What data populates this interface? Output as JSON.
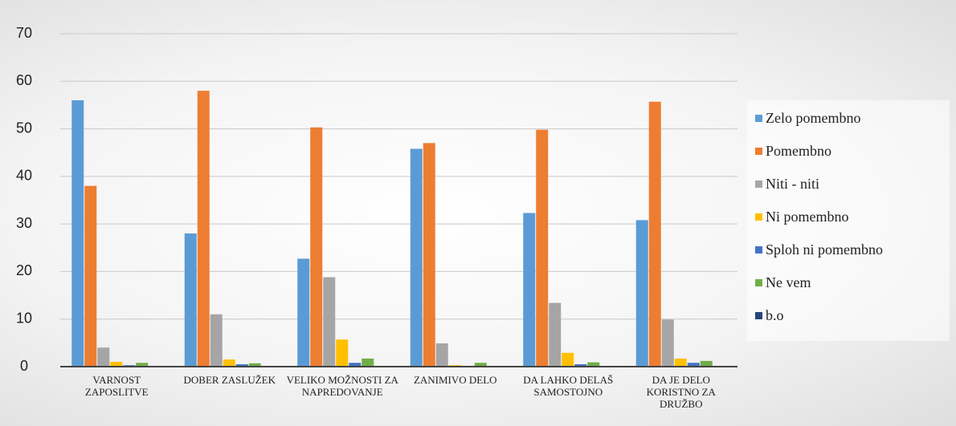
{
  "chart_data": {
    "type": "bar",
    "categories": [
      "VARNOST ZAPOSLITVE",
      "DOBER ZASLUŽEK",
      "VELIKO MOŽNOSTI ZA NAPREDOVANJE",
      "ZANIMIVO DELO",
      "DA LAHKO DELAŠ SAMOSTOJNO",
      "DA JE DELO KORISTNO ZA DRUŽBO"
    ],
    "series": [
      {
        "name": "Zelo pomembno",
        "color": "#5b9bd5",
        "values": [
          56,
          28,
          22.7,
          45.8,
          32.3,
          30.8
        ]
      },
      {
        "name": "Pomembno",
        "color": "#ed7d31",
        "values": [
          38,
          58,
          50.3,
          47,
          49.8,
          55.7
        ]
      },
      {
        "name": "Niti - niti",
        "color": "#a5a5a5",
        "values": [
          4,
          11,
          18.8,
          4.9,
          13.4,
          9.9
        ]
      },
      {
        "name": "Ni pomembno",
        "color": "#ffc000",
        "values": [
          1,
          1.5,
          5.7,
          0.3,
          2.9,
          1.7
        ]
      },
      {
        "name": "Sploh ni pomembno",
        "color": "#4472c4",
        "values": [
          0.3,
          0.5,
          0.8,
          0,
          0.5,
          0.8
        ]
      },
      {
        "name": "Ne vem",
        "color": "#70ad47",
        "values": [
          0.8,
          0.7,
          1.7,
          0.8,
          0.9,
          1.2
        ]
      },
      {
        "name": "b.o",
        "color": "#264478",
        "values": [
          0,
          0,
          0,
          0,
          0,
          0
        ]
      }
    ],
    "ylim": [
      0,
      70
    ],
    "yticks": [
      0,
      10,
      20,
      30,
      40,
      50,
      60,
      70
    ],
    "grid": true,
    "legend": "right"
  }
}
